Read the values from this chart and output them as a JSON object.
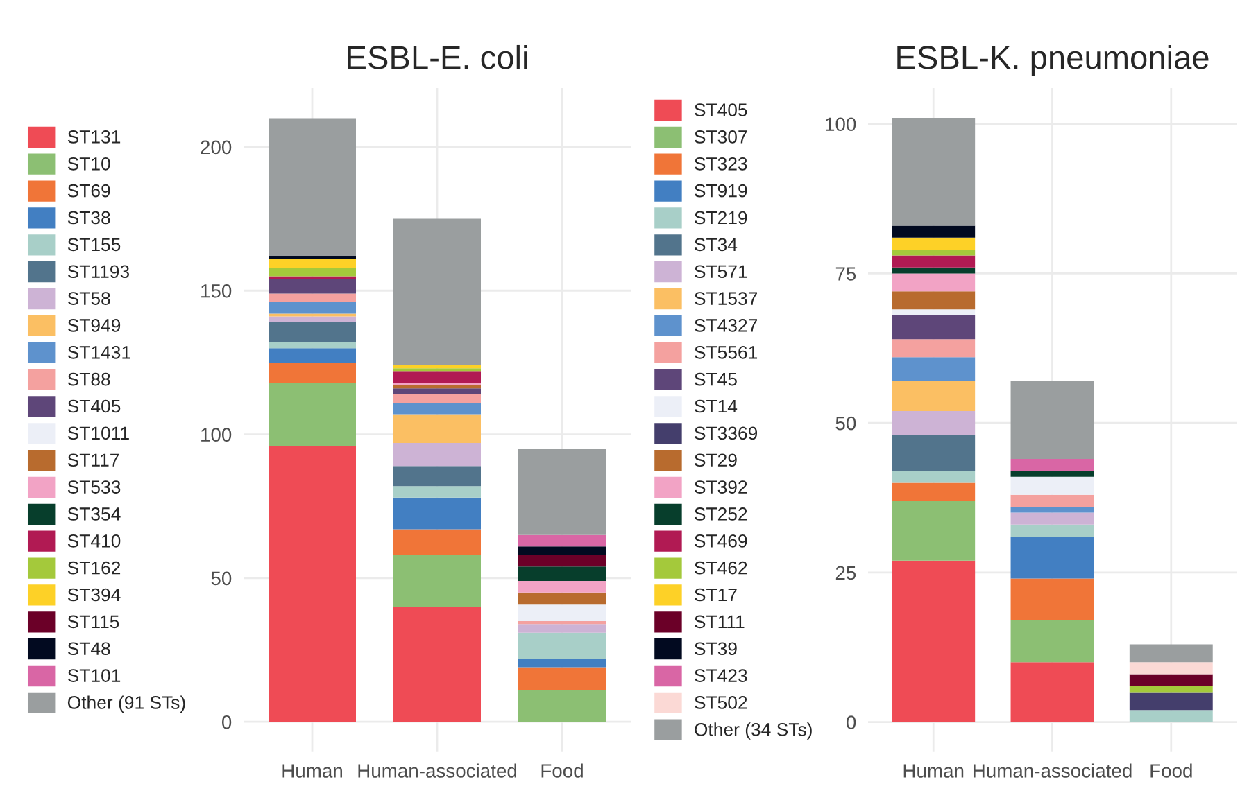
{
  "chart_data": [
    {
      "type": "bar",
      "title": "ESBL-E. coli",
      "stacked": true,
      "legend": "left",
      "grid": true,
      "categories": [
        "Human",
        "Human-associated",
        "Food"
      ],
      "ylim": [
        -10.5,
        220.5
      ],
      "yticks": [
        0,
        50,
        100,
        150,
        200
      ],
      "series": [
        {
          "name": "ST131",
          "color": "#ef4b55",
          "values": [
            96,
            40,
            null
          ]
        },
        {
          "name": "ST10",
          "color": "#8cbf73",
          "values": [
            22,
            18,
            11
          ]
        },
        {
          "name": "ST69",
          "color": "#f07538",
          "values": [
            7,
            9,
            8
          ]
        },
        {
          "name": "ST38",
          "color": "#427fc2",
          "values": [
            5,
            11,
            3
          ]
        },
        {
          "name": "ST155",
          "color": "#a8cfc8",
          "values": [
            2,
            4,
            9
          ]
        },
        {
          "name": "ST1193",
          "color": "#52748c",
          "values": [
            7,
            7,
            null
          ]
        },
        {
          "name": "ST58",
          "color": "#cdb3d5",
          "values": [
            2,
            8,
            3
          ]
        },
        {
          "name": "ST949",
          "color": "#fbbf63",
          "values": [
            1,
            10,
            null
          ]
        },
        {
          "name": "ST1431",
          "color": "#5e92cd",
          "values": [
            4,
            4,
            null
          ]
        },
        {
          "name": "ST88",
          "color": "#f4a19f",
          "values": [
            3,
            3,
            1
          ]
        },
        {
          "name": "ST405",
          "color": "#5e4679",
          "values": [
            5,
            2,
            null
          ]
        },
        {
          "name": "ST1011",
          "color": "#eceff7",
          "values": [
            null,
            null,
            6
          ]
        },
        {
          "name": "ST117",
          "color": "#b86b2e",
          "values": [
            null,
            1,
            4
          ]
        },
        {
          "name": "ST533",
          "color": "#f2a3c5",
          "values": [
            null,
            1,
            4
          ]
        },
        {
          "name": "ST354",
          "color": "#073e2c",
          "values": [
            null,
            null,
            5
          ]
        },
        {
          "name": "ST410",
          "color": "#b11a53",
          "values": [
            1,
            4,
            null
          ]
        },
        {
          "name": "ST162",
          "color": "#a4c93b",
          "values": [
            3,
            1,
            null
          ]
        },
        {
          "name": "ST394",
          "color": "#fdd127",
          "values": [
            3,
            1,
            null
          ]
        },
        {
          "name": "ST115",
          "color": "#6b0028",
          "values": [
            null,
            null,
            4
          ]
        },
        {
          "name": "ST48",
          "color": "#020a20",
          "values": [
            1,
            null,
            3
          ]
        },
        {
          "name": "ST101",
          "color": "#d966a5",
          "values": [
            null,
            null,
            4
          ]
        },
        {
          "name": "Other (91 STs)",
          "color": "#9a9e9f",
          "values": [
            48,
            51,
            30
          ]
        }
      ]
    },
    {
      "type": "bar",
      "title": "ESBL-K. pneumoniae",
      "stacked": true,
      "legend": "left",
      "grid": true,
      "categories": [
        "Human",
        "Human-associated",
        "Food"
      ],
      "ylim": [
        -5,
        106
      ],
      "yticks": [
        0,
        25,
        50,
        75,
        100
      ],
      "series": [
        {
          "name": "ST405",
          "color": "#ef4b55",
          "values": [
            27,
            10,
            null
          ]
        },
        {
          "name": "ST307",
          "color": "#8cbf73",
          "values": [
            10,
            7,
            null
          ]
        },
        {
          "name": "ST323",
          "color": "#f07538",
          "values": [
            3,
            7,
            null
          ]
        },
        {
          "name": "ST919",
          "color": "#427fc2",
          "values": [
            null,
            7,
            null
          ]
        },
        {
          "name": "ST219",
          "color": "#a8cfc8",
          "values": [
            2,
            2,
            2
          ]
        },
        {
          "name": "ST34",
          "color": "#52748c",
          "values": [
            6,
            null,
            null
          ]
        },
        {
          "name": "ST571",
          "color": "#cdb3d5",
          "values": [
            4,
            2,
            null
          ]
        },
        {
          "name": "ST1537",
          "color": "#fbbf63",
          "values": [
            5,
            null,
            null
          ]
        },
        {
          "name": "ST4327",
          "color": "#5e92cd",
          "values": [
            4,
            1,
            null
          ]
        },
        {
          "name": "ST5561",
          "color": "#f4a19f",
          "values": [
            3,
            2,
            null
          ]
        },
        {
          "name": "ST45",
          "color": "#5e4679",
          "values": [
            4,
            null,
            null
          ]
        },
        {
          "name": "ST14",
          "color": "#eceff7",
          "values": [
            1,
            3,
            null
          ]
        },
        {
          "name": "ST3369",
          "color": "#443e6c",
          "values": [
            null,
            null,
            3
          ]
        },
        {
          "name": "ST29",
          "color": "#b86b2e",
          "values": [
            3,
            null,
            null
          ]
        },
        {
          "name": "ST392",
          "color": "#f2a3c5",
          "values": [
            3,
            null,
            null
          ]
        },
        {
          "name": "ST252",
          "color": "#073e2c",
          "values": [
            1,
            1,
            null
          ]
        },
        {
          "name": "ST469",
          "color": "#b11a53",
          "values": [
            2,
            null,
            null
          ]
        },
        {
          "name": "ST462",
          "color": "#a4c93b",
          "values": [
            1,
            null,
            1
          ]
        },
        {
          "name": "ST17",
          "color": "#fdd127",
          "values": [
            2,
            null,
            null
          ]
        },
        {
          "name": "ST111",
          "color": "#6b0028",
          "values": [
            null,
            null,
            2
          ]
        },
        {
          "name": "ST39",
          "color": "#020a20",
          "values": [
            2,
            null,
            null
          ]
        },
        {
          "name": "ST423",
          "color": "#d966a5",
          "values": [
            null,
            2,
            null
          ]
        },
        {
          "name": "ST502",
          "color": "#fbd9d5",
          "values": [
            null,
            null,
            2
          ]
        },
        {
          "name": "Other (34 STs)",
          "color": "#9a9e9f",
          "values": [
            18,
            13,
            3
          ]
        }
      ]
    }
  ]
}
